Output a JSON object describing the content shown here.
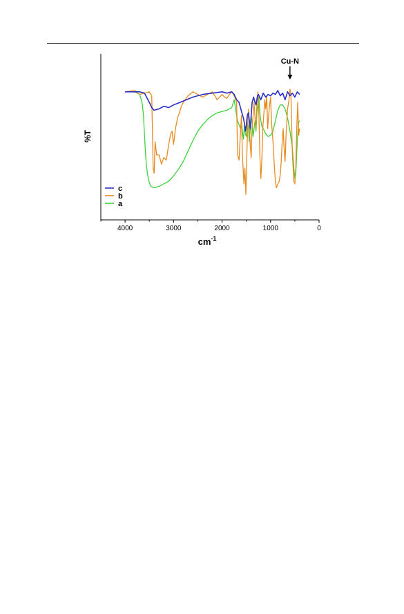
{
  "chart_data": {
    "type": "line",
    "title": "",
    "xlabel": "cm",
    "xlabel_superscript": "-1",
    "ylabel": "%T",
    "xlim": [
      4500,
      0
    ],
    "ylim": [
      0,
      100
    ],
    "x_reversed": true,
    "x_ticks": [
      4000,
      3000,
      2000,
      1000,
      0
    ],
    "y_ticks_labeled": false,
    "grid": false,
    "legend_position": "bottom-left",
    "annotation": {
      "text": "Cu-N",
      "x": 600,
      "y": 93
    },
    "series": [
      {
        "name": "c",
        "color": "#2a2fc8",
        "x": [
          4000,
          3700,
          3600,
          3500,
          3450,
          3400,
          3300,
          3200,
          3100,
          3000,
          2800,
          2600,
          2400,
          2200,
          2000,
          1900,
          1800,
          1750,
          1700,
          1650,
          1620,
          1590,
          1560,
          1540,
          1520,
          1500,
          1480,
          1460,
          1440,
          1420,
          1400,
          1380,
          1350,
          1320,
          1300,
          1270,
          1250,
          1200,
          1150,
          1100,
          1050,
          1000,
          950,
          900,
          850,
          800,
          750,
          700,
          650,
          600,
          550,
          500,
          450,
          400
        ],
        "y": [
          88,
          88,
          87,
          80,
          76,
          74,
          75,
          77,
          76,
          78,
          81,
          84,
          86,
          87,
          88,
          87,
          88,
          86,
          82,
          80,
          76,
          72,
          68,
          64,
          58,
          63,
          70,
          72,
          67,
          60,
          70,
          80,
          84,
          80,
          78,
          85,
          86,
          82,
          87,
          84,
          86,
          85,
          87,
          86,
          89,
          85,
          87,
          82,
          88,
          85,
          87,
          84,
          88,
          86
        ]
      },
      {
        "name": "b",
        "color": "#e88a1e",
        "x": [
          4000,
          3800,
          3700,
          3600,
          3500,
          3450,
          3420,
          3400,
          3380,
          3350,
          3300,
          3250,
          3200,
          3150,
          3100,
          3060,
          3030,
          3000,
          2960,
          2920,
          2880,
          2850,
          2800,
          2700,
          2600,
          2500,
          2400,
          2300,
          2200,
          2100,
          2000,
          1950,
          1900,
          1850,
          1800,
          1750,
          1700,
          1680,
          1650,
          1630,
          1600,
          1580,
          1550,
          1530,
          1510,
          1490,
          1470,
          1450,
          1420,
          1400,
          1380,
          1360,
          1340,
          1320,
          1300,
          1280,
          1260,
          1240,
          1220,
          1200,
          1180,
          1160,
          1140,
          1120,
          1100,
          1080,
          1060,
          1040,
          1020,
          1000,
          980,
          950,
          920,
          900,
          880,
          850,
          820,
          800,
          780,
          760,
          740,
          720,
          700,
          680,
          650,
          620,
          600,
          580,
          550,
          520,
          500,
          480,
          460,
          440,
          420,
          400
        ],
        "y": [
          88,
          89,
          86,
          87,
          88,
          85,
          30,
          26,
          50,
          40,
          40,
          33,
          38,
          36,
          48,
          56,
          58,
          48,
          60,
          68,
          72,
          76,
          80,
          85,
          88,
          86,
          84,
          86,
          88,
          82,
          86,
          84,
          83,
          86,
          88,
          85,
          80,
          40,
          36,
          50,
          70,
          40,
          18,
          30,
          10,
          40,
          65,
          75,
          48,
          38,
          62,
          70,
          80,
          68,
          60,
          80,
          88,
          70,
          40,
          22,
          35,
          60,
          70,
          82,
          75,
          85,
          60,
          70,
          78,
          84,
          65,
          50,
          30,
          20,
          15,
          18,
          20,
          25,
          35,
          50,
          60,
          45,
          35,
          55,
          75,
          82,
          90,
          85,
          40,
          20,
          18,
          30,
          60,
          80,
          55,
          60
        ]
      },
      {
        "name": "a",
        "color": "#3cd23c",
        "x": [
          4000,
          3800,
          3700,
          3650,
          3620,
          3600,
          3580,
          3560,
          3540,
          3520,
          3500,
          3480,
          3460,
          3440,
          3420,
          3400,
          3380,
          3350,
          3300,
          3250,
          3200,
          3100,
          3000,
          2900,
          2800,
          2700,
          2600,
          2500,
          2400,
          2300,
          2200,
          2100,
          2000,
          1900,
          1800,
          1750,
          1700,
          1680,
          1650,
          1620,
          1600,
          1580,
          1560,
          1540,
          1520,
          1500,
          1480,
          1460,
          1440,
          1420,
          1400,
          1380,
          1360,
          1340,
          1320,
          1300,
          1280,
          1260,
          1240,
          1220,
          1200,
          1180,
          1150,
          1100,
          1050,
          1000,
          950,
          900,
          850,
          800,
          750,
          700,
          650,
          600,
          550,
          520,
          500,
          480,
          450,
          420,
          400
        ],
        "y": [
          88,
          88,
          86,
          80,
          70,
          55,
          42,
          32,
          26,
          22,
          19,
          17,
          16,
          15.5,
          15,
          15,
          15.2,
          15.5,
          16,
          17,
          18,
          20,
          24,
          29,
          35,
          43,
          51,
          58,
          63,
          67,
          70,
          72,
          73,
          74,
          76,
          82,
          70,
          66,
          63,
          60,
          66,
          58,
          52,
          62,
          56,
          54,
          65,
          62,
          50,
          58,
          70,
          64,
          54,
          60,
          66,
          58,
          72,
          78,
          84,
          72,
          66,
          62,
          60,
          56,
          54,
          55,
          58,
          66,
          74,
          78,
          78,
          75,
          68,
          58,
          45,
          30,
          22,
          25,
          50,
          65,
          66
        ]
      }
    ]
  }
}
